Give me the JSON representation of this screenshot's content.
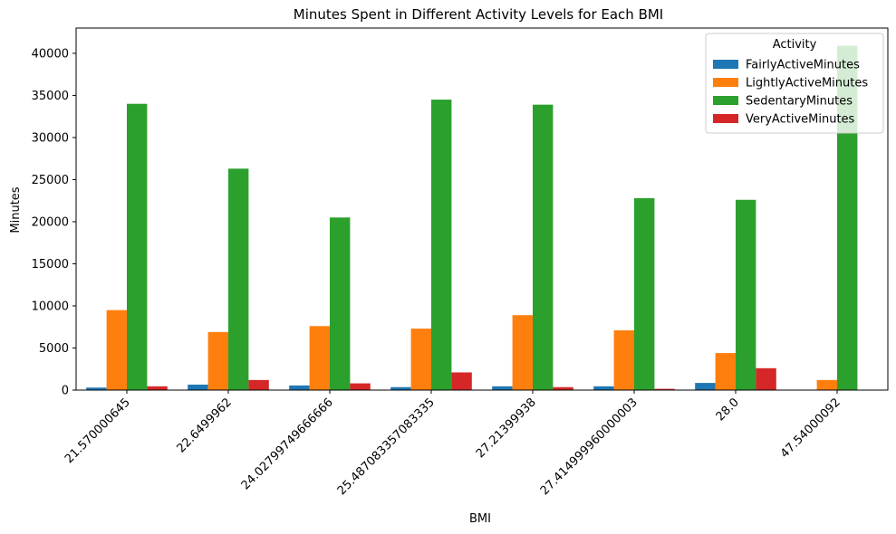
{
  "chart_data": {
    "type": "bar",
    "title": "Minutes Spent in Different Activity Levels for Each BMI",
    "xlabel": "BMI",
    "ylabel": "Minutes",
    "ylim": [
      0,
      43000
    ],
    "yticks": [
      0,
      5000,
      10000,
      15000,
      20000,
      25000,
      30000,
      35000,
      40000
    ],
    "grid": false,
    "categories": [
      "21.570000645",
      "22.6499962",
      "24.02799749666666",
      "25.487083357083335",
      "27.21399938",
      "27.414999960000003",
      "28.0",
      "47.54000092"
    ],
    "legend": {
      "title": "Activity",
      "placement": "top-right"
    },
    "series": [
      {
        "name": "FairlyActiveMinutes",
        "color": "#1f77b4",
        "values": [
          300,
          650,
          550,
          350,
          450,
          450,
          850,
          0
        ]
      },
      {
        "name": "LightlyActiveMinutes",
        "color": "#ff7f0e",
        "values": [
          9500,
          6900,
          7600,
          7300,
          8900,
          7100,
          4400,
          1200
        ]
      },
      {
        "name": "SedentaryMinutes",
        "color": "#2ca02c",
        "values": [
          34000,
          26300,
          20500,
          34500,
          33900,
          22800,
          22600,
          40900
        ]
      },
      {
        "name": "VeryActiveMinutes",
        "color": "#d62728",
        "values": [
          450,
          1200,
          800,
          2100,
          350,
          150,
          2600,
          0
        ]
      }
    ]
  }
}
